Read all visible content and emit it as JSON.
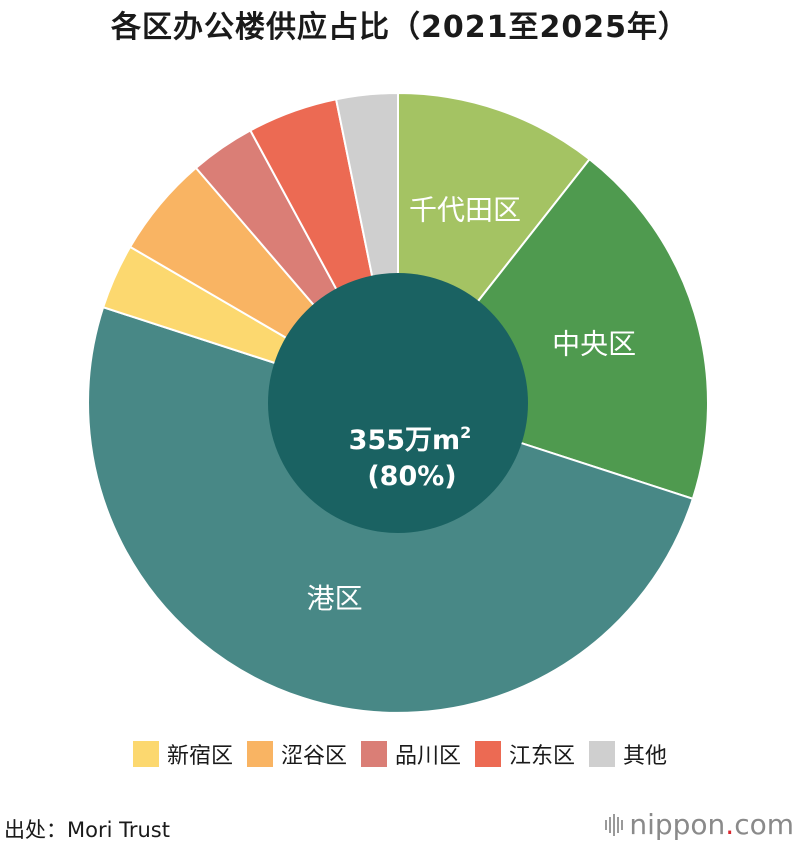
{
  "title": "各区办公楼供应占比（2021至2025年）",
  "chart_data": {
    "type": "pie",
    "title": "各区办公楼供应占比（2021至2025年）",
    "slices": [
      {
        "name": "千代田区",
        "value": 10.6,
        "color": "#a4c363",
        "label_shown": true
      },
      {
        "name": "中央区",
        "value": 19.4,
        "color": "#4f9a4f",
        "label_shown": true
      },
      {
        "name": "港区",
        "value": 50.0,
        "color": "#488886",
        "label_shown": true
      },
      {
        "name": "新宿区",
        "value": 3.4,
        "color": "#fcd86f",
        "label_shown": false
      },
      {
        "name": "涩谷区",
        "value": 5.3,
        "color": "#f9b463",
        "label_shown": false
      },
      {
        "name": "品川区",
        "value": 3.4,
        "color": "#da7e76",
        "label_shown": false
      },
      {
        "name": "江东区",
        "value": 4.7,
        "color": "#ec6a53",
        "label_shown": false
      },
      {
        "name": "其他",
        "value": 3.2,
        "color": "#cfcfcf",
        "label_shown": false
      }
    ],
    "center": {
      "line1": "355万m",
      "sup": "2",
      "line2": "(80%)",
      "color": "#1a6262"
    },
    "legend": [
      {
        "name": "新宿区",
        "color": "#fcd86f"
      },
      {
        "name": "涩谷区",
        "color": "#f9b463"
      },
      {
        "name": "品川区",
        "color": "#da7e76"
      },
      {
        "name": "江东区",
        "color": "#ec6a53"
      },
      {
        "name": "其他",
        "color": "#cfcfcf"
      }
    ],
    "legend_position": "bottom"
  },
  "source": "出处：Mori Trust",
  "brand": {
    "pre": "nippon",
    "dot": ".",
    "post": "com"
  }
}
